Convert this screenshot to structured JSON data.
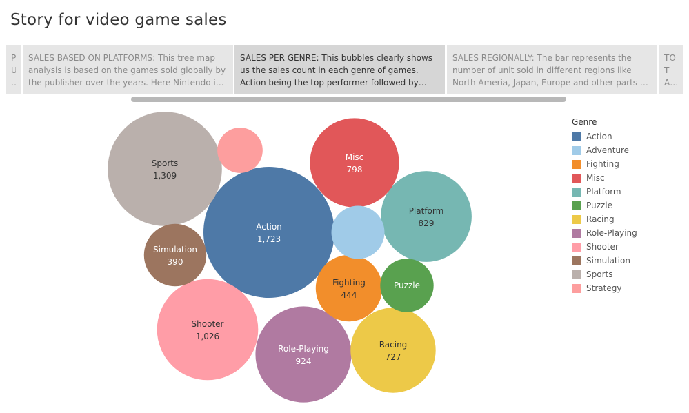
{
  "page": {
    "title": "Story for video game sales"
  },
  "story_points": [
    {
      "text": "P U …",
      "active": false
    },
    {
      "text": "SALES BASED ON PLATFORMS: This tree map analysis is based on the games sold globally by the publisher over the years. Here Nintendo is the clear leader",
      "active": false
    },
    {
      "text": "SALES PER GENRE: This bubbles clearly shows us the sales count in each  genre of games. Action being the top performer followed by sports and shooter",
      "active": true
    },
    {
      "text": "SALES REGIONALLY: The bar represents the number of unit sold in different regions like North Ameria, Japan, Europe and other parts of the world",
      "active": false
    },
    {
      "text": "TOT AL S AL…",
      "active": false
    }
  ],
  "legend": {
    "title": "Genre",
    "items": [
      {
        "label": "Action",
        "color": "#4e79a7"
      },
      {
        "label": "Adventure",
        "color": "#a0cbe8"
      },
      {
        "label": "Fighting",
        "color": "#f28e2b"
      },
      {
        "label": "Misc",
        "color": "#e15759"
      },
      {
        "label": "Platform",
        "color": "#76b7b2"
      },
      {
        "label": "Puzzle",
        "color": "#59a14f"
      },
      {
        "label": "Racing",
        "color": "#edc948"
      },
      {
        "label": "Role-Playing",
        "color": "#b07aa1"
      },
      {
        "label": "Shooter",
        "color": "#ff9da7"
      },
      {
        "label": "Simulation",
        "color": "#9c755f"
      },
      {
        "label": "Sports",
        "color": "#bab0ac"
      },
      {
        "label": "Strategy",
        "color": "#fd9e9e"
      }
    ]
  },
  "chart_data": {
    "type": "bubble",
    "measure": "sales count",
    "bubbles": [
      {
        "genre": "Action",
        "value": 1723,
        "label": "1,723",
        "color": "#4e79a7",
        "text_color": "#ffffff"
      },
      {
        "genre": "Sports",
        "value": 1309,
        "label": "1,309",
        "color": "#bab0ac",
        "text_color": "#333333"
      },
      {
        "genre": "Shooter",
        "value": 1026,
        "label": "1,026",
        "color": "#ff9da7",
        "text_color": "#333333"
      },
      {
        "genre": "Role-Playing",
        "value": 924,
        "label": "924",
        "color": "#b07aa1",
        "text_color": "#ffffff"
      },
      {
        "genre": "Platform",
        "value": 829,
        "label": "829",
        "color": "#76b7b2",
        "text_color": "#333333"
      },
      {
        "genre": "Misc",
        "value": 798,
        "label": "798",
        "color": "#e15759",
        "text_color": "#ffffff"
      },
      {
        "genre": "Racing",
        "value": 727,
        "label": "727",
        "color": "#edc948",
        "text_color": "#333333"
      },
      {
        "genre": "Fighting",
        "value": 444,
        "label": "444",
        "color": "#f28e2b",
        "text_color": "#333333"
      },
      {
        "genre": "Simulation",
        "value": 390,
        "label": "390",
        "color": "#9c755f",
        "text_color": "#ffffff"
      },
      {
        "genre": "Puzzle",
        "value": 286,
        "label": "",
        "color": "#59a14f",
        "text_color": "#ffffff",
        "show_name": true
      },
      {
        "genre": "Adventure",
        "value": 283,
        "label": "",
        "color": "#a0cbe8",
        "text_color": "#ffffff",
        "show_name": false
      },
      {
        "genre": "Strategy",
        "value": 206,
        "label": "",
        "color": "#fd9e9e",
        "text_color": "#ffffff",
        "show_name": false
      }
    ]
  }
}
